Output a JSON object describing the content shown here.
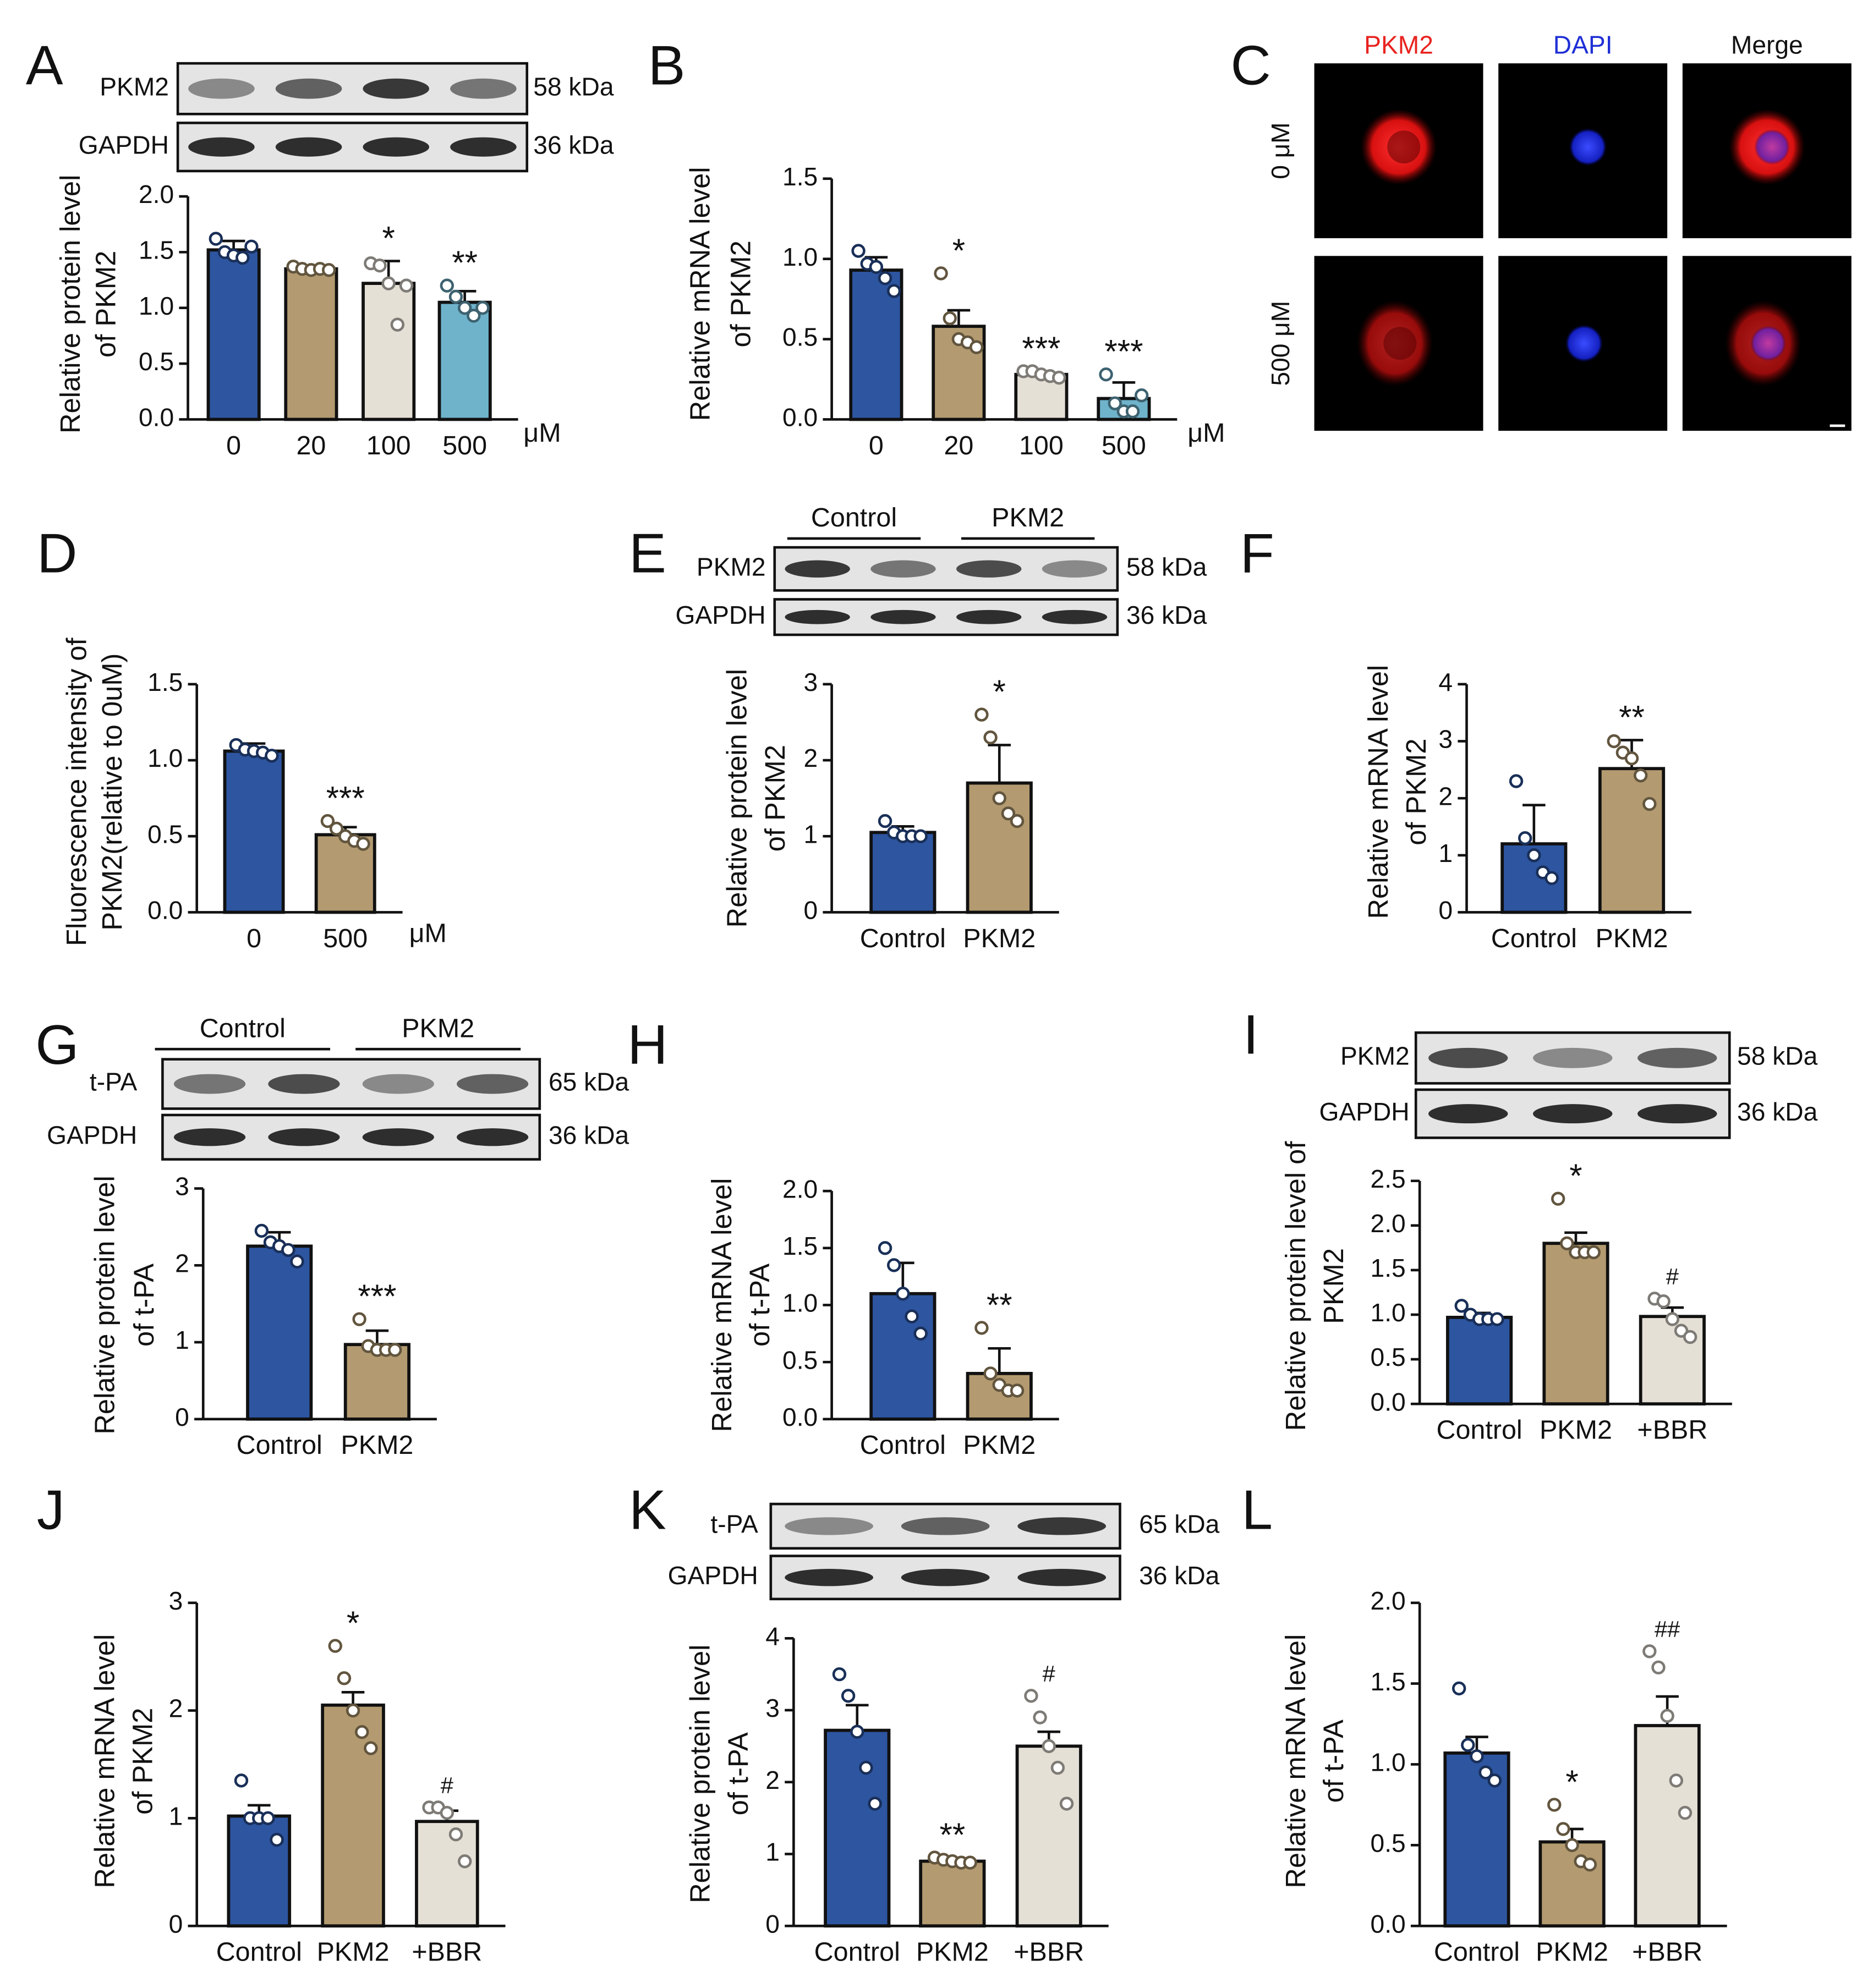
{
  "chart_data": [
    {
      "type": "bar",
      "label": "A",
      "ylabel": [
        "Relative protein level",
        "of PKM2"
      ],
      "categories": [
        "0",
        "20",
        "100",
        "500"
      ],
      "unit": "μM",
      "colors": [
        "#2d55a0",
        "#b39a70",
        "#e5e0d6",
        "#6fb3cb"
      ],
      "values": [
        1.52,
        1.35,
        1.22,
        1.05
      ],
      "errors": [
        0.08,
        0.03,
        0.2,
        0.1
      ],
      "points": [
        [
          1.62,
          1.5,
          1.47,
          1.45,
          1.55
        ],
        [
          1.37,
          1.35,
          1.34,
          1.35,
          1.34
        ],
        [
          1.4,
          1.38,
          1.22,
          0.85,
          1.2
        ],
        [
          1.2,
          1.1,
          1.0,
          0.93,
          1.0
        ]
      ],
      "annotations": [
        null,
        null,
        "*",
        "**"
      ],
      "ylim": [
        0,
        2
      ],
      "yticks": [
        {
          "value": 0,
          "label": "0.0"
        },
        0.5,
        {
          "value": 1,
          "label": "1.0"
        },
        1.5,
        {
          "value": 2,
          "label": "2.0"
        }
      ],
      "blot": {
        "bands": [
          {
            "name": "PKM2",
            "size": "58 kDa"
          },
          {
            "name": "GAPDH",
            "size": "36 kDa"
          }
        ]
      }
    },
    {
      "type": "bar",
      "label": "B",
      "ylabel": [
        "Relative mRNA level",
        "of PKM2"
      ],
      "categories": [
        "0",
        "20",
        "100",
        "500"
      ],
      "unit": "μM",
      "colors": [
        "#2d55a0",
        "#b39a70",
        "#e5e0d6",
        "#6fb3cb"
      ],
      "values": [
        0.93,
        0.58,
        0.28,
        0.13
      ],
      "errors": [
        0.08,
        0.1,
        0.02,
        0.1
      ],
      "points": [
        [
          1.05,
          0.97,
          0.95,
          0.88,
          0.8
        ],
        [
          0.91,
          0.63,
          0.5,
          0.48,
          0.45
        ],
        [
          0.3,
          0.3,
          0.28,
          0.27,
          0.26
        ],
        [
          0.28,
          0.1,
          0.05,
          0.05,
          0.15
        ]
      ],
      "annotations": [
        null,
        "*",
        "***",
        "***"
      ],
      "ylim": [
        0,
        1.5
      ],
      "yticks": [
        {
          "value": 0,
          "label": "0.0"
        },
        0.5,
        {
          "value": 1,
          "label": "1.0"
        },
        1.5
      ]
    },
    {
      "type": "image",
      "label": "C",
      "columns": [
        "PKM2",
        "DAPI",
        "Merge"
      ],
      "column_colors": [
        "#e8231f",
        "#1f2fd6",
        "#111111"
      ],
      "rows": [
        "0 μM",
        "500 μM"
      ]
    },
    {
      "type": "bar",
      "label": "D",
      "ylabel": [
        "Fluorescence intensity of",
        "PKM2(relative to 0uM)"
      ],
      "categories": [
        "0",
        "500"
      ],
      "unit": "μM",
      "colors": [
        "#2d55a0",
        "#b39a70"
      ],
      "values": [
        1.06,
        0.51
      ],
      "errors": [
        0.05,
        0.05
      ],
      "points": [
        [
          1.1,
          1.07,
          1.06,
          1.05,
          1.03
        ],
        [
          0.6,
          0.55,
          0.5,
          0.47,
          0.45
        ]
      ],
      "annotations": [
        null,
        "***"
      ],
      "ylim": [
        0,
        1.5
      ],
      "yticks": [
        {
          "value": 0,
          "label": "0.0"
        },
        0.5,
        {
          "value": 1,
          "label": "1.0"
        },
        1.5
      ]
    },
    {
      "type": "bar",
      "label": "E",
      "ylabel": [
        "Relative protein level",
        "of PKM2"
      ],
      "categories": [
        "Control",
        "PKM2"
      ],
      "colors": [
        "#2d55a0",
        "#b39a70"
      ],
      "values": [
        1.05,
        1.7
      ],
      "errors": [
        0.08,
        0.5
      ],
      "points": [
        [
          1.2,
          1.05,
          1.0,
          1.0,
          1.0
        ],
        [
          2.6,
          2.3,
          1.5,
          1.3,
          1.2
        ]
      ],
      "annotations": [
        null,
        "*"
      ],
      "ylim": [
        0,
        3
      ],
      "yticks": [
        0,
        1,
        2,
        3
      ],
      "blot": {
        "groups": [
          "Control",
          "PKM2"
        ],
        "bands": [
          {
            "name": "PKM2",
            "size": "58 kDa"
          },
          {
            "name": "GAPDH",
            "size": "36 kDa"
          }
        ]
      }
    },
    {
      "type": "bar",
      "label": "F",
      "ylabel": [
        "Relative mRNA level",
        "of PKM2"
      ],
      "categories": [
        "Control",
        "PKM2"
      ],
      "colors": [
        "#2d55a0",
        "#b39a70"
      ],
      "values": [
        1.2,
        2.52
      ],
      "errors": [
        0.68,
        0.5
      ],
      "points": [
        [
          2.3,
          1.3,
          1.0,
          0.7,
          0.6
        ],
        [
          3.0,
          2.8,
          2.7,
          2.4,
          1.9
        ]
      ],
      "annotations": [
        null,
        "**"
      ],
      "ylim": [
        0,
        4
      ],
      "yticks": [
        0,
        1,
        2,
        3,
        4
      ]
    },
    {
      "type": "bar",
      "label": "G",
      "ylabel": [
        "Relative protein level",
        "of t-PA"
      ],
      "categories": [
        "Control",
        "PKM2"
      ],
      "colors": [
        "#2d55a0",
        "#b39a70"
      ],
      "values": [
        2.25,
        0.97
      ],
      "errors": [
        0.18,
        0.18
      ],
      "points": [
        [
          2.45,
          2.3,
          2.25,
          2.2,
          2.05
        ],
        [
          1.3,
          0.95,
          0.9,
          0.9,
          0.9
        ]
      ],
      "annotations": [
        null,
        "***"
      ],
      "ylim": [
        0,
        3
      ],
      "yticks": [
        0,
        1,
        2,
        3
      ],
      "blot": {
        "groups": [
          "Control",
          "PKM2"
        ],
        "bands": [
          {
            "name": "t-PA",
            "size": "65 kDa"
          },
          {
            "name": "GAPDH",
            "size": "36 kDa"
          }
        ]
      }
    },
    {
      "type": "bar",
      "label": "H",
      "ylabel": [
        "Relative mRNA level",
        "of t-PA"
      ],
      "categories": [
        "Control",
        "PKM2"
      ],
      "colors": [
        "#2d55a0",
        "#b39a70"
      ],
      "values": [
        1.1,
        0.4
      ],
      "errors": [
        0.27,
        0.22
      ],
      "points": [
        [
          1.5,
          1.35,
          1.1,
          0.9,
          0.75
        ],
        [
          0.8,
          0.4,
          0.3,
          0.25,
          0.25
        ]
      ],
      "annotations": [
        null,
        "**"
      ],
      "ylim": [
        0,
        2
      ],
      "yticks": [
        {
          "value": 0,
          "label": "0.0"
        },
        0.5,
        {
          "value": 1,
          "label": "1.0"
        },
        1.5,
        {
          "value": 2,
          "label": "2.0"
        }
      ]
    },
    {
      "type": "bar",
      "label": "I",
      "ylabel": [
        "Relative protein level of",
        "PKM2"
      ],
      "categories": [
        "Control",
        "PKM2",
        "+BBR"
      ],
      "colors": [
        "#2d55a0",
        "#b39a70",
        "#e5e0d6"
      ],
      "values": [
        0.97,
        1.8,
        0.98
      ],
      "errors": [
        0.05,
        0.12,
        0.1
      ],
      "points": [
        [
          1.1,
          1.0,
          0.95,
          0.95,
          0.95
        ],
        [
          2.3,
          1.8,
          1.7,
          1.7,
          1.7
        ],
        [
          1.18,
          1.15,
          0.95,
          0.82,
          0.75
        ]
      ],
      "annotations": [
        null,
        "*",
        "#"
      ],
      "ylim": [
        0,
        2.5
      ],
      "yticks": [
        {
          "value": 0,
          "label": "0.0"
        },
        0.5,
        {
          "value": 1,
          "label": "1.0"
        },
        1.5,
        {
          "value": 2,
          "label": "2.0"
        },
        2.5
      ],
      "blot": {
        "bands": [
          {
            "name": "PKM2",
            "size": "58 kDa"
          },
          {
            "name": "GAPDH",
            "size": "36 kDa"
          }
        ]
      }
    },
    {
      "type": "bar",
      "label": "J",
      "ylabel": [
        "Relative mRNA level",
        "of PKM2"
      ],
      "categories": [
        "Control",
        "PKM2",
        "+BBR"
      ],
      "colors": [
        "#2d55a0",
        "#b39a70",
        "#e5e0d6"
      ],
      "values": [
        1.02,
        2.05,
        0.97
      ],
      "errors": [
        0.1,
        0.12,
        0.1
      ],
      "points": [
        [
          1.35,
          1.0,
          1.0,
          1.0,
          0.8
        ],
        [
          2.6,
          2.3,
          2.0,
          1.8,
          1.65
        ],
        [
          1.1,
          1.1,
          1.05,
          0.85,
          0.6
        ]
      ],
      "annotations": [
        null,
        "*",
        "#"
      ],
      "ylim": [
        0,
        3
      ],
      "yticks": [
        0,
        1,
        2,
        3
      ]
    },
    {
      "type": "bar",
      "label": "K",
      "ylabel": [
        "Relative protein level",
        "of t-PA"
      ],
      "categories": [
        "Control",
        "PKM2",
        "+BBR"
      ],
      "colors": [
        "#2d55a0",
        "#b39a70",
        "#e5e0d6"
      ],
      "values": [
        2.72,
        0.9,
        2.5
      ],
      "errors": [
        0.35,
        0.03,
        0.2
      ],
      "points": [
        [
          3.5,
          3.2,
          2.7,
          2.2,
          1.7
        ],
        [
          0.95,
          0.92,
          0.9,
          0.88,
          0.88
        ],
        [
          3.2,
          2.9,
          2.5,
          2.2,
          1.7
        ]
      ],
      "annotations": [
        null,
        "**",
        "#"
      ],
      "ylim": [
        0,
        4
      ],
      "yticks": [
        0,
        1,
        2,
        3,
        4
      ],
      "blot": {
        "bands": [
          {
            "name": "t-PA",
            "size": "65 kDa"
          },
          {
            "name": "GAPDH",
            "size": "36 kDa"
          }
        ]
      }
    },
    {
      "type": "bar",
      "label": "L",
      "ylabel": [
        "Relative mRNA level",
        "of t-PA"
      ],
      "categories": [
        "Control",
        "PKM2",
        "+BBR"
      ],
      "colors": [
        "#2d55a0",
        "#b39a70",
        "#e5e0d6"
      ],
      "values": [
        1.07,
        0.52,
        1.24
      ],
      "errors": [
        0.1,
        0.08,
        0.18
      ],
      "points": [
        [
          1.47,
          1.12,
          1.05,
          0.95,
          0.9
        ],
        [
          0.75,
          0.6,
          0.5,
          0.4,
          0.38
        ],
        [
          1.7,
          1.6,
          1.3,
          0.9,
          0.7
        ]
      ],
      "annotations": [
        null,
        "*",
        "##"
      ],
      "ylim": [
        0,
        2
      ],
      "yticks": [
        {
          "value": 0,
          "label": "0.0"
        },
        0.5,
        {
          "value": 1,
          "label": "1.0"
        },
        1.5,
        {
          "value": 2,
          "label": "2.0"
        }
      ]
    }
  ]
}
